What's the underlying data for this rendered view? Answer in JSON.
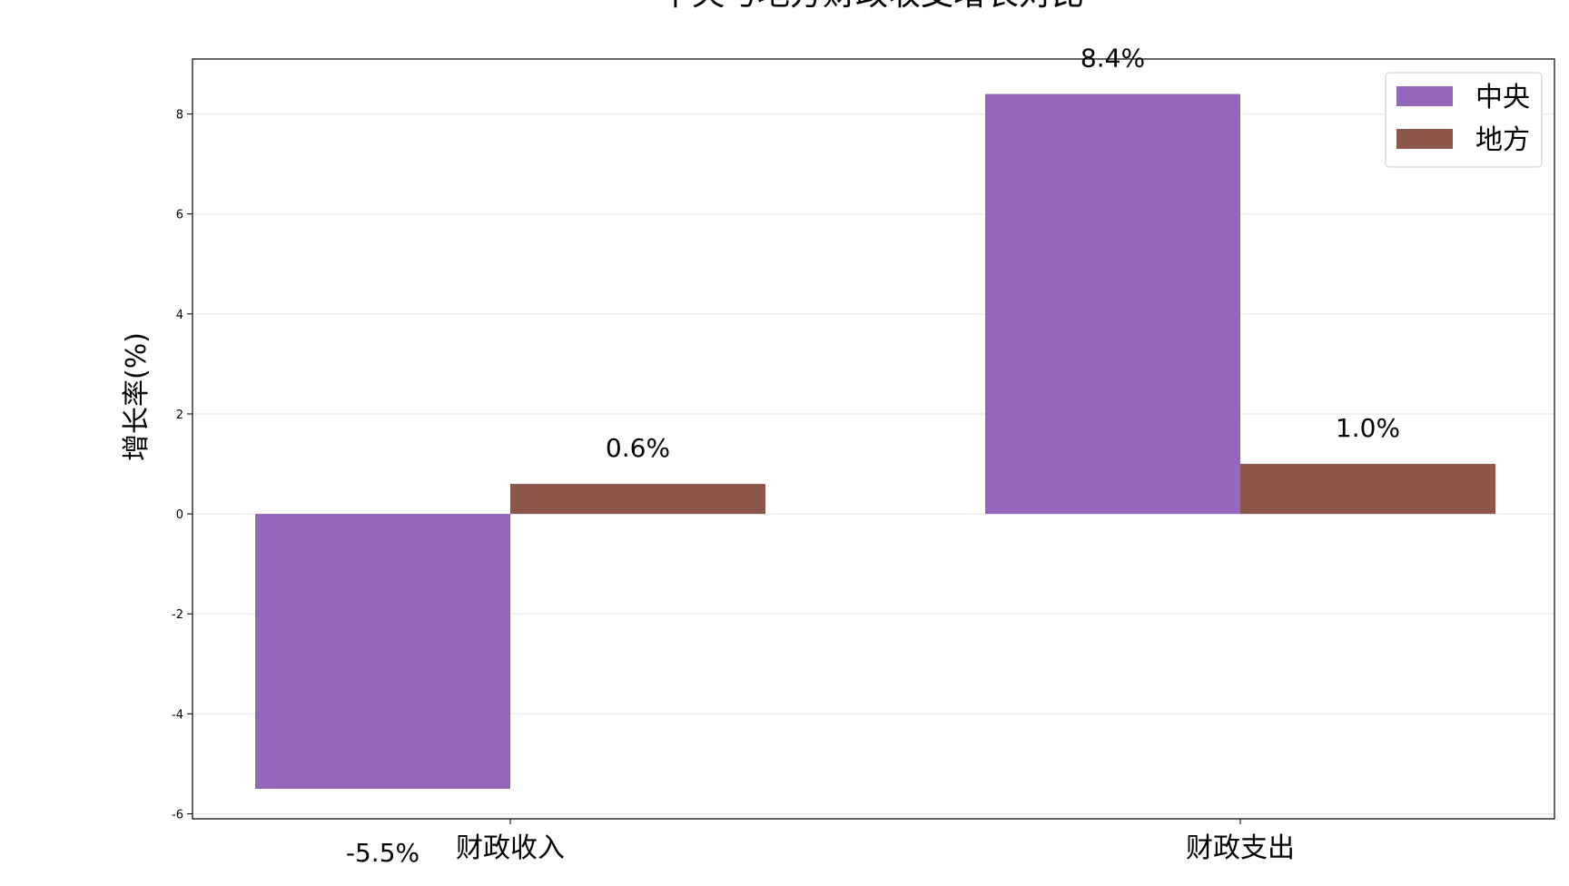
{
  "chart_data": {
    "type": "bar",
    "title": "中央与地方财政收支增长对比",
    "xlabel": "",
    "ylabel": "增长率(%)",
    "categories": [
      "财政收入",
      "财政支出"
    ],
    "series": [
      {
        "name": "中央",
        "values": [
          -5.5,
          8.4
        ],
        "labels": [
          "-5.5%",
          "8.4%"
        ],
        "color": "#9467bd"
      },
      {
        "name": "地方",
        "values": [
          0.6,
          1.0
        ],
        "labels": [
          "0.6%",
          "1.0%"
        ],
        "color": "#8c564b"
      }
    ],
    "ylim": [
      -6.1,
      9.1
    ],
    "yticks": [
      -6,
      -4,
      -2,
      0,
      2,
      4,
      6,
      8
    ],
    "ytick_labels": [
      "-6",
      "-4",
      "-2",
      "0",
      "2",
      "4",
      "6",
      "8"
    ],
    "grid": true,
    "legend": {
      "position": "top-right"
    }
  }
}
